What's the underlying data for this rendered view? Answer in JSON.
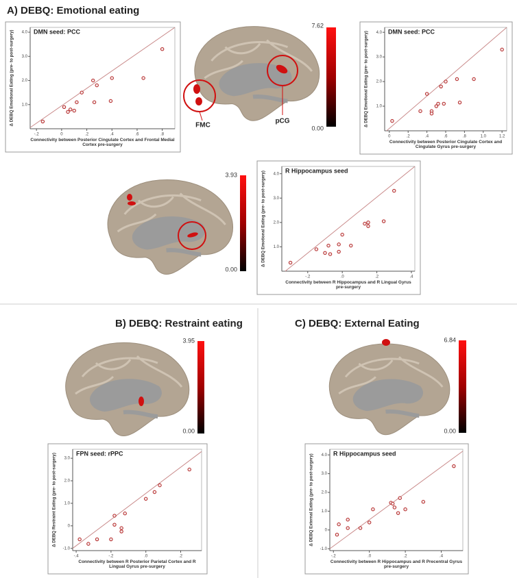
{
  "panels": {
    "A": "A) DEBQ: Emotional eating",
    "B": "B) DEBQ: Restraint eating",
    "C": "C) DEBQ: External Eating"
  },
  "brains": [
    {
      "cbar_max": "7.62",
      "cbar_min": "0.00",
      "labels": [
        "FMC",
        "pCG"
      ]
    },
    {
      "cbar_max": "3.93",
      "cbar_min": "0.00"
    },
    {
      "cbar_max": "3.95",
      "cbar_min": "0.00"
    },
    {
      "cbar_max": "6.84",
      "cbar_min": "0.00"
    }
  ],
  "chart_data": [
    {
      "type": "scatter",
      "title": "DMN seed: PCC",
      "x_label": "Connectivity between Posterior Cingulate Cortex and Frontal Medial Cortex pre-surgery",
      "y_label": "Δ DEBQ Emotional Eating (pre- to post-surgery)",
      "x": [
        -0.15,
        0.02,
        0.05,
        0.07,
        0.1,
        0.12,
        0.16,
        0.25,
        0.26,
        0.28,
        0.4,
        0.39,
        0.65,
        0.8
      ],
      "values": [
        0.3,
        0.9,
        0.7,
        0.8,
        0.75,
        1.1,
        1.5,
        2.0,
        1.1,
        1.8,
        2.1,
        1.15,
        2.1,
        3.3
      ],
      "trend": {
        "x": [
          -0.25,
          0.9
        ],
        "values": [
          0.05,
          4.2
        ]
      },
      "point_color": "#b22222",
      "line_color": "#c98a8a",
      "xlim": [
        -0.25,
        0.9
      ],
      "ylim": [
        0,
        4.2
      ],
      "xticks": [
        {
          "value": -0.2,
          "label": "-.2"
        },
        0,
        {
          "value": 0.2,
          "label": ".2"
        },
        {
          "value": 0.4,
          "label": ".4"
        },
        {
          "value": 0.6,
          "label": ".6"
        },
        {
          "value": 0.8,
          "label": ".8"
        }
      ],
      "yticks": [
        {
          "value": 1,
          "label": "1.0"
        },
        {
          "value": 2,
          "label": "2.0"
        },
        {
          "value": 3,
          "label": "3.0"
        },
        {
          "value": 4,
          "label": "4.0"
        }
      ]
    },
    {
      "type": "scatter",
      "title": "DMN seed: PCC",
      "x_label": "Connectivity between Posterior Cingulate Cortex and Cingulate Gyrus pre-surgery",
      "y_label": "Δ DEBQ Emotional Eating (pre- to post-surgery)",
      "x": [
        0.03,
        0.33,
        0.4,
        0.45,
        0.45,
        0.5,
        0.52,
        0.55,
        0.58,
        0.6,
        0.72,
        0.75,
        0.9,
        1.2
      ],
      "values": [
        0.4,
        0.8,
        1.5,
        0.8,
        0.7,
        1.0,
        1.1,
        1.8,
        1.1,
        2.0,
        2.1,
        1.15,
        2.1,
        3.3
      ],
      "trend": {
        "x": [
          -0.03,
          1.25
        ],
        "values": [
          0,
          4.2
        ]
      },
      "point_color": "#b22222",
      "line_color": "#c98a8a",
      "xlim": [
        -0.05,
        1.25
      ],
      "ylim": [
        0,
        4.2
      ],
      "xticks": [
        0,
        {
          "value": 0.2,
          "label": ".2"
        },
        {
          "value": 0.4,
          "label": ".4"
        },
        {
          "value": 0.6,
          "label": ".6"
        },
        {
          "value": 0.8,
          "label": ".8"
        },
        {
          "value": 1,
          "label": "1.0"
        },
        {
          "value": 1.2,
          "label": "1.2"
        }
      ],
      "yticks": [
        {
          "value": 1,
          "label": "1.0"
        },
        {
          "value": 2,
          "label": "2.0"
        },
        {
          "value": 3,
          "label": "3.0"
        },
        {
          "value": 4,
          "label": "4.0"
        }
      ]
    },
    {
      "type": "scatter",
      "title": "R Hippocampus seed",
      "x_label": "Connectivity between R Hippocampus and R Lingual Gyrus pre-surgery",
      "y_label": "Δ DEBQ Emotional Eating (pre- to post-surgery)",
      "x": [
        -0.3,
        -0.15,
        -0.1,
        -0.08,
        -0.07,
        -0.02,
        -0.02,
        0,
        0.05,
        0.13,
        0.15,
        0.15,
        0.24,
        0.3
      ],
      "values": [
        0.35,
        0.9,
        0.75,
        1.05,
        0.7,
        0.8,
        1.1,
        1.5,
        1.05,
        1.95,
        2.0,
        1.85,
        2.05,
        3.3
      ],
      "trend": {
        "x": [
          -0.33,
          0.42
        ],
        "values": [
          0,
          4.3
        ]
      },
      "point_color": "#b22222",
      "line_color": "#c98a8a",
      "xlim": [
        -0.35,
        0.42
      ],
      "ylim": [
        0,
        4.3
      ],
      "xticks": [
        {
          "value": -0.2,
          "label": "-.2"
        },
        {
          "value": 0,
          "label": ".0"
        },
        {
          "value": 0.2,
          "label": ".2"
        },
        {
          "value": 0.4,
          "label": ".4"
        }
      ],
      "yticks": [
        {
          "value": 1,
          "label": "1.0"
        },
        {
          "value": 2,
          "label": "2.0"
        },
        {
          "value": 3,
          "label": "3.0"
        },
        {
          "value": 4,
          "label": "4.0"
        }
      ]
    },
    {
      "type": "scatter",
      "title": "FPN seed: rPPC",
      "x_label": "Connectivity between R Posterior Parietal Cortex and R Lingual Gyrus pre-surgery",
      "y_label": "Δ DEBQ Restraint Eating (pre- to post-surgery)",
      "x": [
        -0.38,
        -0.33,
        -0.28,
        -0.2,
        -0.18,
        -0.18,
        -0.14,
        -0.14,
        -0.12,
        0,
        0.05,
        0.08,
        0.25
      ],
      "values": [
        -0.6,
        -0.8,
        -0.6,
        -0.6,
        0.05,
        0.45,
        -0.1,
        -0.25,
        0.55,
        1.2,
        1.5,
        1.8,
        2.5
      ],
      "trend": {
        "x": [
          -0.42,
          0.32
        ],
        "values": [
          -1.0,
          3.3
        ]
      },
      "point_color": "#b22222",
      "line_color": "#c98a8a",
      "xlim": [
        -0.42,
        0.32
      ],
      "ylim": [
        -1.1,
        3.4
      ],
      "xticks": [
        {
          "value": -0.4,
          "label": "-.4"
        },
        {
          "value": -0.2,
          "label": "-.2"
        },
        {
          "value": 0,
          "label": ".0"
        },
        {
          "value": 0.2,
          "label": ".2"
        }
      ],
      "yticks": [
        {
          "value": -1,
          "label": "-1.0"
        },
        0,
        {
          "value": 1,
          "label": "1.0"
        },
        {
          "value": 2,
          "label": "2.0"
        },
        {
          "value": 3,
          "label": "3.0"
        }
      ]
    },
    {
      "type": "scatter",
      "title": "R Hippocampus seed",
      "x_label": "Connectivity between R Hippocampus and R Precentral Gyrus pre-surgery",
      "y_label": "Δ DEBQ External Eating (pre- to post-surgery)",
      "x": [
        -0.18,
        -0.17,
        -0.12,
        -0.12,
        -0.05,
        0,
        0.02,
        0.12,
        0.13,
        0.14,
        0.16,
        0.17,
        0.2,
        0.3,
        0.47
      ],
      "values": [
        -0.25,
        0.3,
        0.1,
        0.55,
        0.1,
        0.4,
        1.1,
        1.45,
        1.4,
        1.2,
        0.9,
        1.7,
        1.1,
        1.5,
        3.4
      ],
      "trend": {
        "x": [
          -0.22,
          0.52
        ],
        "values": [
          -1.0,
          4.2
        ]
      },
      "point_color": "#b22222",
      "line_color": "#c98a8a",
      "xlim": [
        -0.22,
        0.52
      ],
      "ylim": [
        -1.1,
        4.3
      ],
      "xticks": [
        {
          "value": -0.2,
          "label": "-.2"
        },
        {
          "value": 0,
          "label": ".0"
        },
        {
          "value": 0.2,
          "label": ".2"
        },
        {
          "value": 0.4,
          "label": ".4"
        }
      ],
      "yticks": [
        {
          "value": -1,
          "label": "-1.0"
        },
        0,
        {
          "value": 1,
          "label": "1.0"
        },
        {
          "value": 2,
          "label": "2.0"
        },
        {
          "value": 3,
          "label": "3.0"
        },
        {
          "value": 4,
          "label": "4.0"
        }
      ]
    }
  ]
}
